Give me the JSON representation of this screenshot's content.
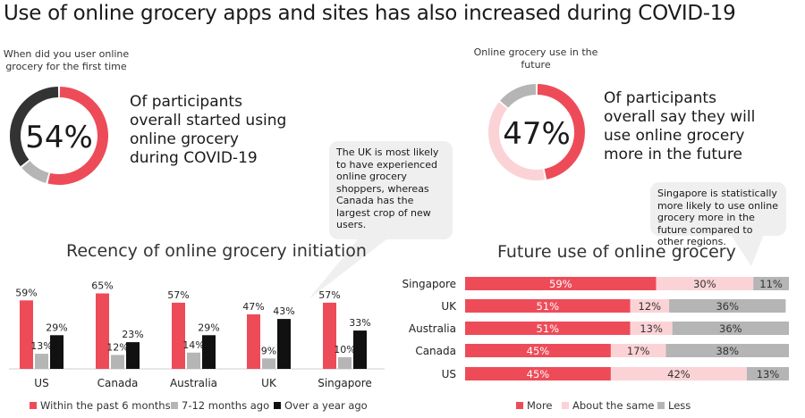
{
  "title": "Use of online grocery apps and sites has also increased during COVID-19",
  "colors": {
    "red": "#ee4b59",
    "pink": "#fbd3d6",
    "gray": "#b5b5b5",
    "dark": "#333333",
    "black": "#111111"
  },
  "donut_left": {
    "caption": "When did you user online grocery for the first time",
    "value": "54%",
    "fraction": 0.54,
    "text": "Of participants overall started using online grocery during COVID-19"
  },
  "donut_right": {
    "caption": "Online grocery use in the future",
    "value": "47%",
    "fraction": 0.47,
    "text": "Of participants overall say they will use online grocery more in the future"
  },
  "bubble_uk": "The UK is most likely to have experienced online grocery shoppers, whereas Canada has the largest crop of new users.",
  "bubble_sg": "Singapore is statistically more likely to use online grocery more in the future compared to other regions.",
  "chart_data": [
    {
      "type": "bar",
      "title": "Recency of online grocery initiation",
      "categories": [
        "US",
        "Canada",
        "Australia",
        "UK",
        "Singapore"
      ],
      "series": [
        {
          "name": "Within the past 6 months",
          "values": [
            59,
            65,
            57,
            47,
            57
          ],
          "labels": [
            "59%",
            "65%",
            "57%",
            "47%",
            "57%"
          ]
        },
        {
          "name": "7-12 months ago",
          "values": [
            13,
            12,
            14,
            9,
            10
          ],
          "labels": [
            "13%",
            "12%",
            "14%",
            "9%",
            "10%"
          ]
        },
        {
          "name": "Over a year ago",
          "values": [
            29,
            23,
            29,
            43,
            33
          ],
          "labels": [
            "29%",
            "23%",
            "29%",
            "43%",
            "33%"
          ]
        }
      ],
      "ylim": [
        0,
        70
      ]
    },
    {
      "type": "bar",
      "orientation": "horizontal-stacked",
      "title": "Future use of online grocery",
      "categories": [
        "Singapore",
        "UK",
        "Australia",
        "Canada",
        "US"
      ],
      "series": [
        {
          "name": "More",
          "values": [
            59,
            51,
            51,
            45,
            45
          ],
          "labels": [
            "59%",
            "51%",
            "51%",
            "45%",
            "45%"
          ]
        },
        {
          "name": "About the same",
          "values": [
            30,
            12,
            13,
            17,
            42
          ],
          "labels": [
            "30%",
            "12%",
            "13%",
            "17%",
            "42%"
          ]
        },
        {
          "name": "Less",
          "values": [
            11,
            36,
            36,
            38,
            13
          ],
          "labels": [
            "11%",
            "36%",
            "36%",
            "38%",
            "13%"
          ]
        }
      ],
      "xlim": [
        0,
        100
      ]
    }
  ]
}
